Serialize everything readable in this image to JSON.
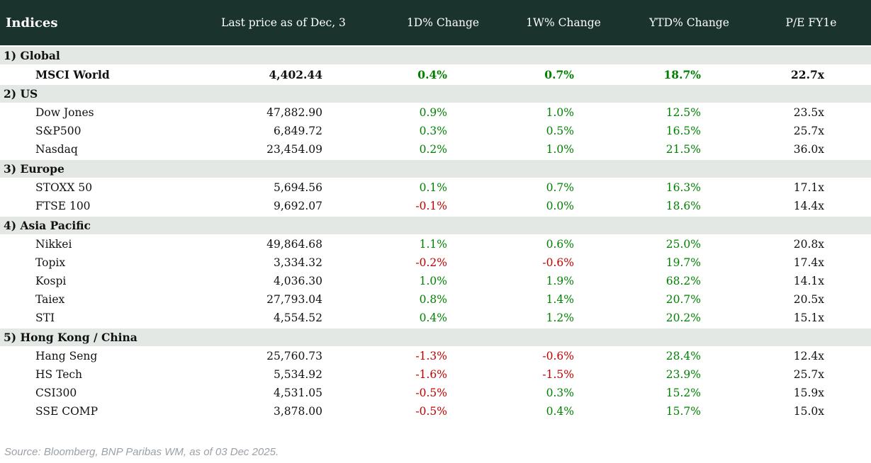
{
  "table": {
    "title": "Indices",
    "columns": [
      "Last price as of Dec, 3",
      "1D% Change",
      "1W% Change",
      "YTD% Change",
      "P/E FY1e"
    ],
    "sections": [
      {
        "label": "1) Global",
        "rows": [
          {
            "name": "MSCI World",
            "price": "4,402.44",
            "d1": "0.4%",
            "w1": "0.7%",
            "ytd": "18.7%",
            "pe": "22.7x",
            "bold": true
          }
        ]
      },
      {
        "label": "2) US",
        "rows": [
          {
            "name": "Dow Jones",
            "price": "47,882.90",
            "d1": "0.9%",
            "w1": "1.0%",
            "ytd": "12.5%",
            "pe": "23.5x"
          },
          {
            "name": "S&P500",
            "price": "6,849.72",
            "d1": "0.3%",
            "w1": "0.5%",
            "ytd": "16.5%",
            "pe": "25.7x"
          },
          {
            "name": "Nasdaq",
            "price": "23,454.09",
            "d1": "0.2%",
            "w1": "1.0%",
            "ytd": "21.5%",
            "pe": "36.0x"
          }
        ]
      },
      {
        "label": "3) Europe",
        "rows": [
          {
            "name": "STOXX 50",
            "price": "5,694.56",
            "d1": "0.1%",
            "w1": "0.7%",
            "ytd": "16.3%",
            "pe": "17.1x"
          },
          {
            "name": "FTSE 100",
            "price": "9,692.07",
            "d1": "-0.1%",
            "w1": "0.0%",
            "ytd": "18.6%",
            "pe": "14.4x"
          }
        ]
      },
      {
        "label": "4) Asia Pacific",
        "rows": [
          {
            "name": "Nikkei",
            "price": "49,864.68",
            "d1": "1.1%",
            "w1": "0.6%",
            "ytd": "25.0%",
            "pe": "20.8x"
          },
          {
            "name": "Topix",
            "price": "3,334.32",
            "d1": "-0.2%",
            "w1": "-0.6%",
            "ytd": "19.7%",
            "pe": "17.4x"
          },
          {
            "name": "Kospi",
            "price": "4,036.30",
            "d1": "1.0%",
            "w1": "1.9%",
            "ytd": "68.2%",
            "pe": "14.1x"
          },
          {
            "name": "Taiex",
            "price": "27,793.04",
            "d1": "0.8%",
            "w1": "1.4%",
            "ytd": "20.7%",
            "pe": "20.5x"
          },
          {
            "name": "STI",
            "price": "4,554.52",
            "d1": "0.4%",
            "w1": "1.2%",
            "ytd": "20.2%",
            "pe": "15.1x"
          }
        ]
      },
      {
        "label": "5) Hong Kong / China",
        "rows": [
          {
            "name": "Hang Seng",
            "price": "25,760.73",
            "d1": "-1.3%",
            "w1": "-0.6%",
            "ytd": "28.4%",
            "pe": "12.4x"
          },
          {
            "name": "HS Tech",
            "price": "5,534.92",
            "d1": "-1.6%",
            "w1": "-1.5%",
            "ytd": "23.9%",
            "pe": "25.7x"
          },
          {
            "name": "CSI300",
            "price": "4,531.05",
            "d1": "-0.5%",
            "w1": "0.3%",
            "ytd": "15.2%",
            "pe": "15.9x"
          },
          {
            "name": "SSE COMP",
            "price": "3,878.00",
            "d1": "-0.5%",
            "w1": "0.4%",
            "ytd": "15.7%",
            "pe": "15.0x"
          }
        ]
      }
    ]
  },
  "footer": {
    "source": "Source: Bloomberg, BNP Paribas WM, as of 03 Dec 2025."
  },
  "colors": {
    "header_bg": "#1a332d",
    "band_bg": "#e3e8e4",
    "positive": "#008000",
    "negative": "#c00000"
  }
}
